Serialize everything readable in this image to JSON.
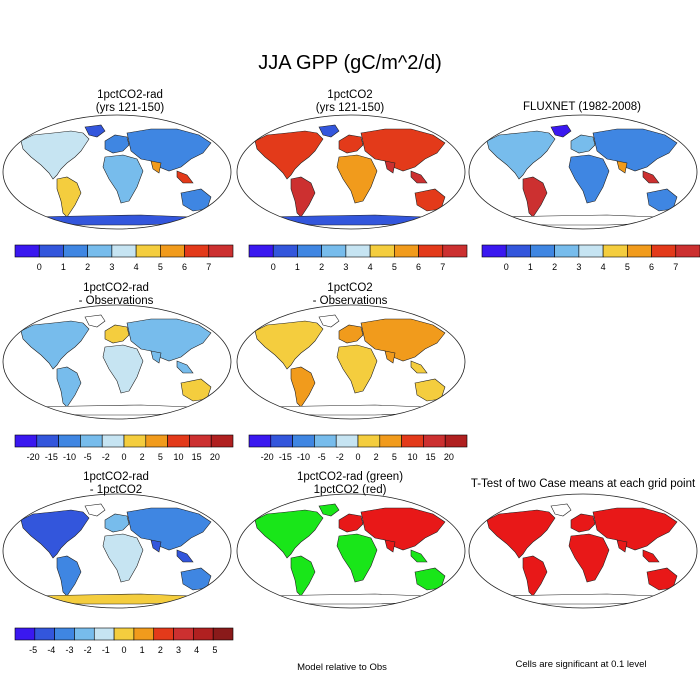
{
  "title": "JJA GPP (gC/m^2/d)",
  "colors": {
    "abs_scale": [
      "#3a18f0",
      "#3356dc",
      "#3f86e2",
      "#77bcec",
      "#c6e4f2",
      "#f4cd3e",
      "#f19b1c",
      "#e33a1a",
      "#cc3030"
    ],
    "diff_scale": [
      "#3a18f0",
      "#3356dc",
      "#3f86e2",
      "#77bcec",
      "#c6e4f2",
      "#f4cd3e",
      "#f19b1c",
      "#e33a1a",
      "#cc3030",
      "#b02020"
    ],
    "diff_small_scale": [
      "#3a18f0",
      "#3356dc",
      "#3f86e2",
      "#77bcec",
      "#c6e4f2",
      "#f4cd3e",
      "#f19b1c",
      "#e33a1a",
      "#cc3030",
      "#b02020",
      "#8a1a1a"
    ],
    "green": "#19e619",
    "red": "#e81818"
  },
  "panels": {
    "p1": {
      "title_line1": "1pctCO2-rad",
      "title_line2": "(yrs 121-150)"
    },
    "p2": {
      "title_line1": "1pctCO2",
      "title_line2": "(yrs 121-150)"
    },
    "p3": {
      "title_line1": "FLUXNET (1982-2008)"
    },
    "p4": {
      "title_line1": "1pctCO2-rad",
      "title_line2": "- Observations"
    },
    "p5": {
      "title_line1": "1pctCO2",
      "title_line2": "- Observations"
    },
    "p7": {
      "title_line1": "1pctCO2-rad",
      "title_line2": "- 1pctCO2"
    },
    "p8": {
      "title_line1": "1pctCO2-rad (green)",
      "title_line2": "1pctCO2 (red)"
    },
    "p9": {
      "title_line1": "T-Test of two Case means at each grid point"
    }
  },
  "colorbars": {
    "abs_labels": [
      "0",
      "1",
      "2",
      "3",
      "4",
      "5",
      "6",
      "7"
    ],
    "diff_labels": [
      "-20",
      "-15",
      "-10",
      "-5",
      "-2",
      "0",
      "2",
      "5",
      "10",
      "15",
      "20"
    ],
    "diff_small_labels": [
      "-5",
      "-4",
      "-3",
      "-2",
      "-1",
      "0",
      "1",
      "2",
      "3",
      "4",
      "5"
    ]
  },
  "notes": {
    "model_relative": "Model relative to Obs",
    "significance": "Cells are significant at 0.1 level"
  }
}
